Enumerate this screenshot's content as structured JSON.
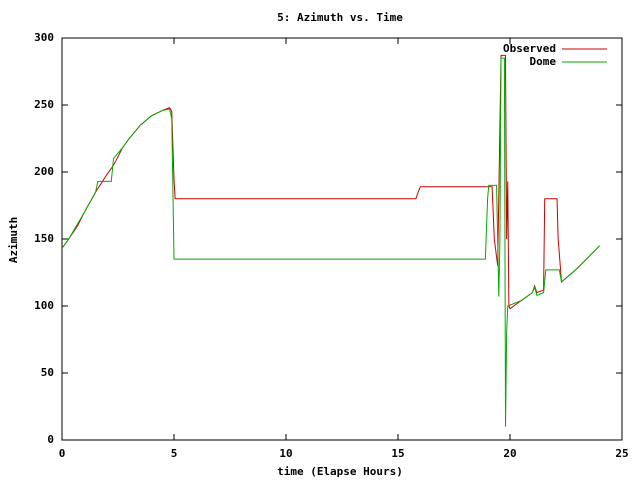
{
  "chart_data": {
    "type": "line",
    "title": "5: Azimuth vs. Time",
    "x_label": "time (Elapse Hours)",
    "y_label": "Azimuth",
    "xlim": [
      0,
      25
    ],
    "xticks": [
      0,
      5,
      10,
      15,
      20,
      25
    ],
    "ylim": [
      0,
      300
    ],
    "yticks": [
      0,
      50,
      100,
      150,
      200,
      250,
      300
    ],
    "legend": "top-right",
    "grid": false,
    "series": [
      {
        "name": "Observed",
        "color": "#cc0000",
        "x": [
          0,
          0.3,
          0.7,
          1,
          1.5,
          2,
          2.3,
          2.7,
          3,
          3.5,
          4,
          4.5,
          4.8,
          4.9,
          4.95,
          5,
          5.05,
          15.8,
          15.9,
          16,
          19.2,
          19.3,
          19.45,
          19.6,
          19.8,
          19.85,
          19.9,
          19.95,
          20,
          20.5,
          21,
          21.1,
          21.2,
          21.5,
          21.55,
          22.1,
          22.15,
          22.3,
          23,
          24
        ],
        "values": [
          143,
          150,
          160,
          170,
          185,
          198,
          205,
          218,
          225,
          235,
          242,
          246,
          248,
          245,
          220,
          195,
          180,
          180,
          185,
          189,
          189,
          150,
          130,
          287,
          287,
          150,
          193,
          100,
          98,
          104,
          110,
          115,
          110,
          112,
          180,
          180,
          150,
          118,
          128,
          145
        ]
      },
      {
        "name": "Dome",
        "color": "#00aa00",
        "x": [
          0,
          0.3,
          1,
          1.5,
          1.6,
          2.2,
          2.3,
          2.7,
          3,
          3.5,
          4,
          4.5,
          4.8,
          4.9,
          5,
          18.9,
          19,
          19.05,
          19.4,
          19.5,
          19.55,
          19.6,
          19.75,
          19.8,
          19.85,
          19.9,
          20.5,
          21,
          21.1,
          21.2,
          21.5,
          21.6,
          22.2,
          22.3,
          23,
          24
        ],
        "values": [
          143,
          150,
          170,
          185,
          193,
          193,
          210,
          218,
          225,
          235,
          242,
          246,
          247,
          240,
          135,
          135,
          180,
          190,
          190,
          107,
          150,
          285,
          285,
          10,
          80,
          100,
          104,
          110,
          114,
          108,
          110,
          127,
          127,
          118,
          128,
          145
        ]
      }
    ]
  }
}
